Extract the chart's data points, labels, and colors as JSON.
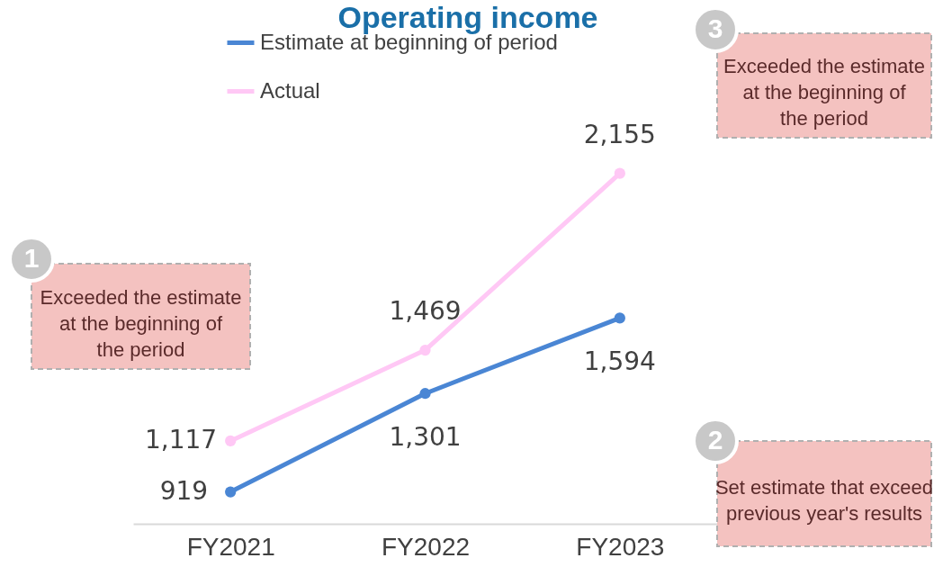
{
  "chart_data": {
    "type": "line",
    "title": "Operating income",
    "categories": [
      "FY2021",
      "FY2022",
      "FY2023"
    ],
    "series": [
      {
        "name": "Estimate at beginning of period",
        "color": "#4a86d4",
        "values": [
          919,
          1301,
          1594
        ],
        "value_labels": [
          "919",
          "1,301",
          "1,594"
        ]
      },
      {
        "name": "Actual",
        "color": "#ffc8f5",
        "values": [
          1117,
          1469,
          2155
        ],
        "value_labels": [
          "1,117",
          "1,469",
          "2,155"
        ]
      }
    ],
    "legend": "top left",
    "marker": "circle",
    "grid": false,
    "annotations": [
      "1",
      "Exceeded the estimate at the beginning of the period",
      "2",
      "Set estimate that exceed previous year's results",
      "3",
      "Exceeded the estimate at the beginning of the period"
    ]
  }
}
